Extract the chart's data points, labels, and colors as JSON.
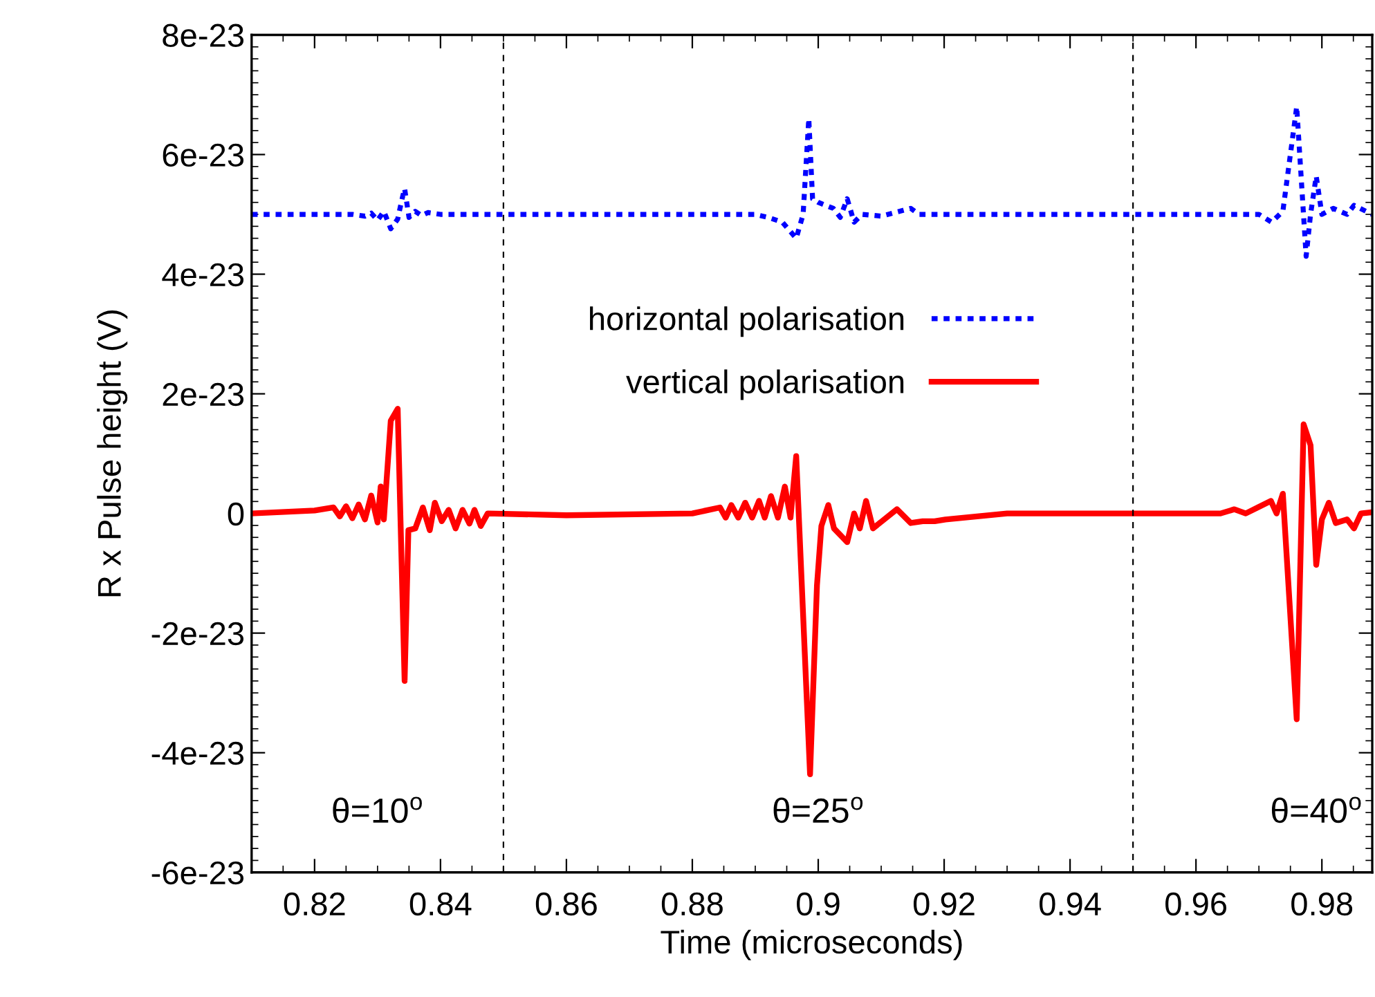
{
  "chart_data": {
    "type": "line",
    "xlabel": "Time (microseconds)",
    "ylabel": "R x Pulse height (V)",
    "xlim": [
      0.81,
      0.988
    ],
    "ylim": [
      -6e-23,
      8e-23
    ],
    "xticks": [
      0.82,
      0.84,
      0.86,
      0.88,
      0.9,
      0.92,
      0.94,
      0.96,
      0.98
    ],
    "yticks": [
      {
        "value": -6e-23,
        "label": "-6e-23"
      },
      {
        "value": -4e-23,
        "label": "-4e-23"
      },
      {
        "value": -2e-23,
        "label": "-2e-23"
      },
      {
        "value": 0,
        "label": "0"
      },
      {
        "value": 2e-23,
        "label": "2e-23"
      },
      {
        "value": 4e-23,
        "label": "4e-23"
      },
      {
        "value": 6e-23,
        "label": "6e-23"
      },
      {
        "value": 8e-23,
        "label": "8e-23"
      }
    ],
    "grid": false,
    "legend": "center",
    "marker": "none",
    "series": [
      {
        "name": "horizontal polarisation",
        "color": "#0000ff",
        "line_style": "dotted",
        "x": [
          0.81,
          0.826,
          0.828,
          0.829,
          0.83,
          0.831,
          0.8321,
          0.8332,
          0.8339,
          0.8343,
          0.835,
          0.836,
          0.837,
          0.838,
          0.84,
          0.89,
          0.892,
          0.8943,
          0.8965,
          0.8976,
          0.8985,
          0.8991,
          0.9,
          0.9024,
          0.9035,
          0.9046,
          0.9057,
          0.907,
          0.91,
          0.9147,
          0.916,
          0.97,
          0.972,
          0.9738,
          0.976,
          0.9775,
          0.9782,
          0.9791,
          0.98,
          0.9818,
          0.984,
          0.9851,
          0.988
        ],
        "values": [
          5e-23,
          5e-23,
          4.97e-23,
          5.02e-23,
          4.9e-23,
          5.05e-23,
          4.76e-23,
          4.92e-23,
          5.26e-23,
          5.43e-23,
          4.95e-23,
          5.05e-23,
          4.98e-23,
          5.03e-23,
          5e-23,
          5e-23,
          4.95e-23,
          4.87e-23,
          4.6e-23,
          5e-23,
          6.6e-23,
          5.26e-23,
          5.2e-23,
          5.1e-23,
          4.95e-23,
          5.26e-23,
          4.87e-23,
          5e-23,
          4.97e-23,
          5.1e-23,
          5e-23,
          5e-23,
          4.87e-23,
          5.05e-23,
          6.8e-23,
          4.3e-23,
          5e-23,
          5.64e-23,
          5e-23,
          5.1e-23,
          5e-23,
          5.15e-23,
          5e-23
        ]
      },
      {
        "name": "vertical polarisation",
        "color": "#ff0000",
        "line_style": "solid",
        "x": [
          0.81,
          0.82,
          0.823,
          0.824,
          0.825,
          0.826,
          0.827,
          0.828,
          0.829,
          0.83,
          0.8305,
          0.831,
          0.8321,
          0.8332,
          0.8343,
          0.8349,
          0.836,
          0.8372,
          0.8383,
          0.8391,
          0.8402,
          0.8413,
          0.8424,
          0.8435,
          0.8446,
          0.8454,
          0.8464,
          0.8475,
          0.86,
          0.88,
          0.8844,
          0.8853,
          0.8862,
          0.8873,
          0.8884,
          0.8895,
          0.8906,
          0.8915,
          0.8925,
          0.8936,
          0.8947,
          0.8956,
          0.8965,
          0.8987,
          0.8998,
          0.9005,
          0.9016,
          0.9025,
          0.9046,
          0.9057,
          0.9066,
          0.9076,
          0.9087,
          0.9125,
          0.9147,
          0.9166,
          0.9185,
          0.9202,
          0.93,
          0.96,
          0.9639,
          0.9661,
          0.9679,
          0.9698,
          0.9719,
          0.9728,
          0.9738,
          0.976,
          0.9771,
          0.9782,
          0.9791,
          0.98,
          0.9811,
          0.9822,
          0.984,
          0.9851,
          0.9862,
          0.988
        ],
        "values": [
          0,
          5e-25,
          1e-24,
          -5e-25,
          1.2e-24,
          -8e-25,
          1.5e-24,
          -1e-24,
          3e-24,
          -1.5e-24,
          4.5e-24,
          -1e-24,
          1.55e-23,
          1.75e-23,
          -2.8e-23,
          -2.8e-24,
          -2.5e-24,
          1e-24,
          -2.8e-24,
          1.8e-24,
          -1.3e-24,
          6e-25,
          -2.5e-24,
          6e-25,
          -1.7e-24,
          6e-25,
          -2.1e-24,
          0,
          -3e-25,
          0,
          1e-24,
          -7e-25,
          1.4e-24,
          -7e-25,
          1.8e-24,
          -7e-25,
          2.1e-24,
          -7e-25,
          2.9e-24,
          -7e-25,
          4.5e-24,
          -7e-25,
          9.6e-24,
          -4.36e-23,
          -1.2e-23,
          -2.1e-24,
          1.4e-24,
          -2.5e-24,
          -4.8e-24,
          0,
          -2.5e-24,
          2.1e-24,
          -2.5e-24,
          7e-25,
          -1.6e-24,
          -1.3e-24,
          -1.3e-24,
          -1e-24,
          0,
          0,
          0,
          7e-25,
          0,
          1e-24,
          2.1e-24,
          0,
          3.3e-24,
          -3.44e-23,
          1.49e-23,
          1.14e-23,
          -8.6e-24,
          -1e-24,
          1.8e-24,
          -1.6e-24,
          -1e-24,
          -2.5e-24,
          0,
          2e-25
        ]
      }
    ],
    "ref_lines": [
      {
        "axis": "x",
        "value": 0.85,
        "color": "#000000",
        "line_style": "dashed"
      },
      {
        "axis": "x",
        "value": 0.95,
        "color": "#000000",
        "line_style": "dashed"
      }
    ],
    "annotations": [
      "θ=10$^{o}$",
      "θ=25$^{o}$",
      "θ=40$^{o}$"
    ]
  }
}
